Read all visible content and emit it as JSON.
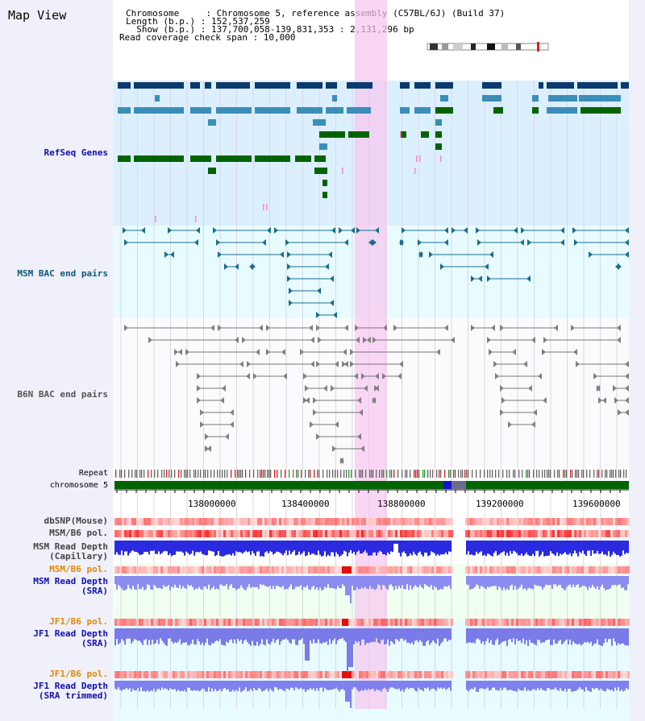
{
  "page_title": "Map View",
  "info": {
    "chromosome": "Chromosome     : Chromosome 5, reference assembly (C57BL/6J) (Build 37)",
    "length": "Length (b.p.) : 152,537,259",
    "show": "  Show (b.p.) : 137,700,058-139,831,353 : 2,131,296 bp",
    "coverage": "Read coverage check span : 10,000"
  },
  "tracks": {
    "refseq": "RefSeq Genes",
    "msm_bac": "MSM BAC end pairs",
    "b6n_bac": "B6N BAC end pairs",
    "repeat": "Repeat",
    "chromosome": "chromosome 5",
    "dbsnp": "dbSNP(Mouse)",
    "msm_b6_pol": "MSM/B6 pol.",
    "msm_read_depth_cap": "MSM Read Depth\n(Capillary)",
    "msm_b6_pol_2": "MSM/B6 pol.",
    "msm_read_depth_sra": "MSM Read Depth\n(SRA)",
    "jf1_b6_pol": "JF1/B6 pol.",
    "jf1_read_depth_sra": "JF1 Read Depth\n(SRA)",
    "jf1_b6_pol_2": "JF1/B6 pol.",
    "jf1_read_depth_trim": "JF1 Read Depth\n(SRA trimmed)"
  },
  "axis": {
    "ticks": [
      "138000000",
      "138400000",
      "138800000",
      "139200000",
      "139600000"
    ]
  },
  "colors": {
    "refseq_bg": "#dcefff",
    "bac_bg": "#e8fbff",
    "highlight": "#f7d8f7",
    "dark_gene": "#0b3a6e",
    "mid_gene": "#3b8eb8",
    "green_gene": "#006400",
    "msm_line": "#1a6e8e",
    "b6n_line": "#808080"
  }
}
